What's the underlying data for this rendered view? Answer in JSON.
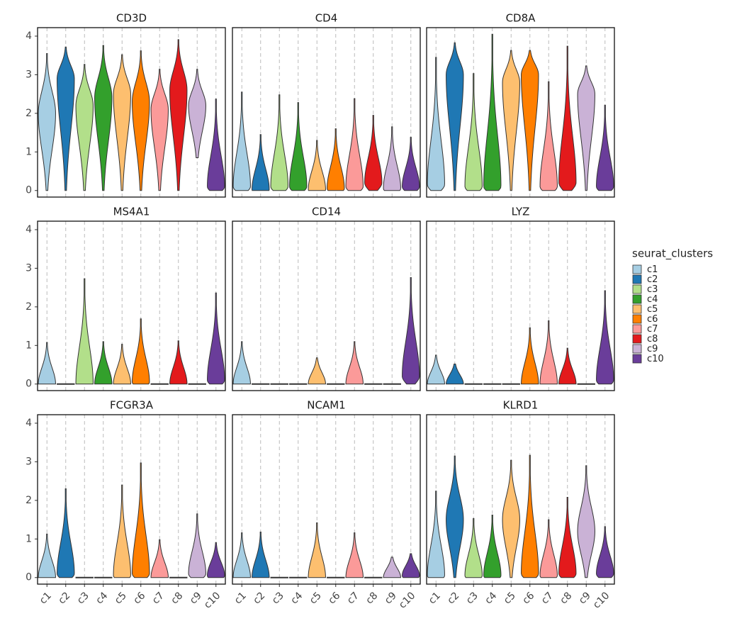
{
  "chart_data": {
    "type": "violin",
    "categories": [
      "c1",
      "c2",
      "c3",
      "c4",
      "c5",
      "c6",
      "c7",
      "c8",
      "c9",
      "c10"
    ],
    "legend_title": "seurat_clusters",
    "series": [
      {
        "name": "c1",
        "color": "#A6CEE3"
      },
      {
        "name": "c2",
        "color": "#1F78B4"
      },
      {
        "name": "c3",
        "color": "#B2DF8A"
      },
      {
        "name": "c4",
        "color": "#33A02C"
      },
      {
        "name": "c5",
        "color": "#FDBF6F"
      },
      {
        "name": "c6",
        "color": "#FF7F00"
      },
      {
        "name": "c7",
        "color": "#FB9A99"
      },
      {
        "name": "c8",
        "color": "#E31A1C"
      },
      {
        "name": "c9",
        "color": "#CAB2D6"
      },
      {
        "name": "c10",
        "color": "#6A3D9A"
      }
    ],
    "ylim": [
      -0.17,
      4.22
    ],
    "yticks": [
      0,
      1,
      2,
      3,
      4
    ],
    "panels": [
      {
        "title": "CD3D",
        "min": [
          0,
          0,
          0,
          0,
          0,
          0,
          0,
          0,
          0.85,
          0
        ],
        "mode": [
          2.0,
          2.9,
          2.2,
          2.4,
          2.5,
          2.3,
          2.1,
          2.6,
          2.2,
          0.1
        ],
        "max": [
          3.55,
          3.72,
          3.27,
          3.76,
          3.52,
          3.62,
          3.14,
          3.91,
          3.14,
          2.37
        ]
      },
      {
        "title": "CD4",
        "min": [
          0,
          0,
          0,
          0,
          0,
          0,
          0,
          0,
          0,
          0
        ],
        "mode": [
          0.1,
          0.02,
          0.1,
          0.1,
          0.02,
          0.05,
          0.1,
          0.2,
          0.05,
          0.1
        ],
        "max": [
          2.55,
          1.45,
          2.48,
          2.28,
          1.3,
          1.6,
          2.38,
          1.95,
          1.65,
          1.38
        ]
      },
      {
        "title": "CD8A",
        "min": [
          0,
          0,
          0,
          0,
          0,
          0,
          0,
          0,
          0,
          0
        ],
        "mode": [
          0.15,
          3.0,
          0.1,
          0.1,
          2.8,
          3.0,
          0.1,
          0.2,
          2.5,
          0.1
        ],
        "max": [
          3.45,
          3.83,
          3.03,
          4.05,
          3.63,
          3.63,
          2.82,
          3.74,
          3.23,
          2.21
        ]
      },
      {
        "title": "MS4A1",
        "min": [
          0,
          0,
          0,
          0,
          0,
          0,
          0,
          0,
          0,
          0
        ],
        "mode": [
          0,
          0,
          0,
          0,
          0,
          0.05,
          0,
          0,
          0,
          0.1
        ],
        "max": [
          1.08,
          0,
          2.73,
          1.1,
          1.03,
          1.69,
          0,
          1.12,
          0,
          2.36
        ]
      },
      {
        "title": "CD14",
        "min": [
          0,
          0,
          0,
          0,
          0,
          0,
          0,
          0,
          0,
          0
        ],
        "mode": [
          0,
          0,
          0,
          0,
          0,
          0,
          0,
          0,
          0,
          0.2
        ],
        "max": [
          1.1,
          0,
          0,
          0,
          0.68,
          0,
          1.1,
          0,
          0,
          2.76
        ]
      },
      {
        "title": "LYZ",
        "min": [
          0,
          0,
          0,
          0,
          0,
          0,
          0,
          0,
          0,
          0
        ],
        "mode": [
          0,
          0,
          0,
          0,
          0,
          0,
          0,
          0,
          0,
          0.1
        ],
        "max": [
          0.75,
          0.52,
          0,
          0,
          0,
          1.46,
          1.64,
          0.93,
          0,
          2.42
        ]
      },
      {
        "title": "FCGR3A",
        "min": [
          0,
          0,
          0,
          0,
          0,
          0,
          0,
          0,
          0,
          0
        ],
        "mode": [
          0,
          0.1,
          0,
          0,
          0.05,
          0.1,
          0,
          0,
          0.1,
          0.05
        ],
        "max": [
          1.13,
          2.3,
          0,
          0,
          2.4,
          2.97,
          0.98,
          0,
          1.65,
          0.91
        ]
      },
      {
        "title": "NCAM1",
        "min": [
          0,
          0,
          0,
          0,
          0,
          0,
          0,
          0,
          0,
          0
        ],
        "mode": [
          0,
          0,
          0,
          0,
          0,
          0,
          0,
          0,
          0,
          0.05
        ],
        "max": [
          1.16,
          1.18,
          0,
          0,
          1.42,
          0,
          1.16,
          0,
          0.53,
          0.62
        ]
      },
      {
        "title": "KLRD1",
        "min": [
          0,
          0,
          0,
          0,
          0,
          0,
          0,
          0,
          0,
          0
        ],
        "mode": [
          0.05,
          1.5,
          0.05,
          0.05,
          1.5,
          0.1,
          0.05,
          0.1,
          1.2,
          0.1
        ],
        "max": [
          2.24,
          3.15,
          1.53,
          1.62,
          3.04,
          3.17,
          1.5,
          2.08,
          2.9,
          1.32
        ]
      }
    ]
  }
}
